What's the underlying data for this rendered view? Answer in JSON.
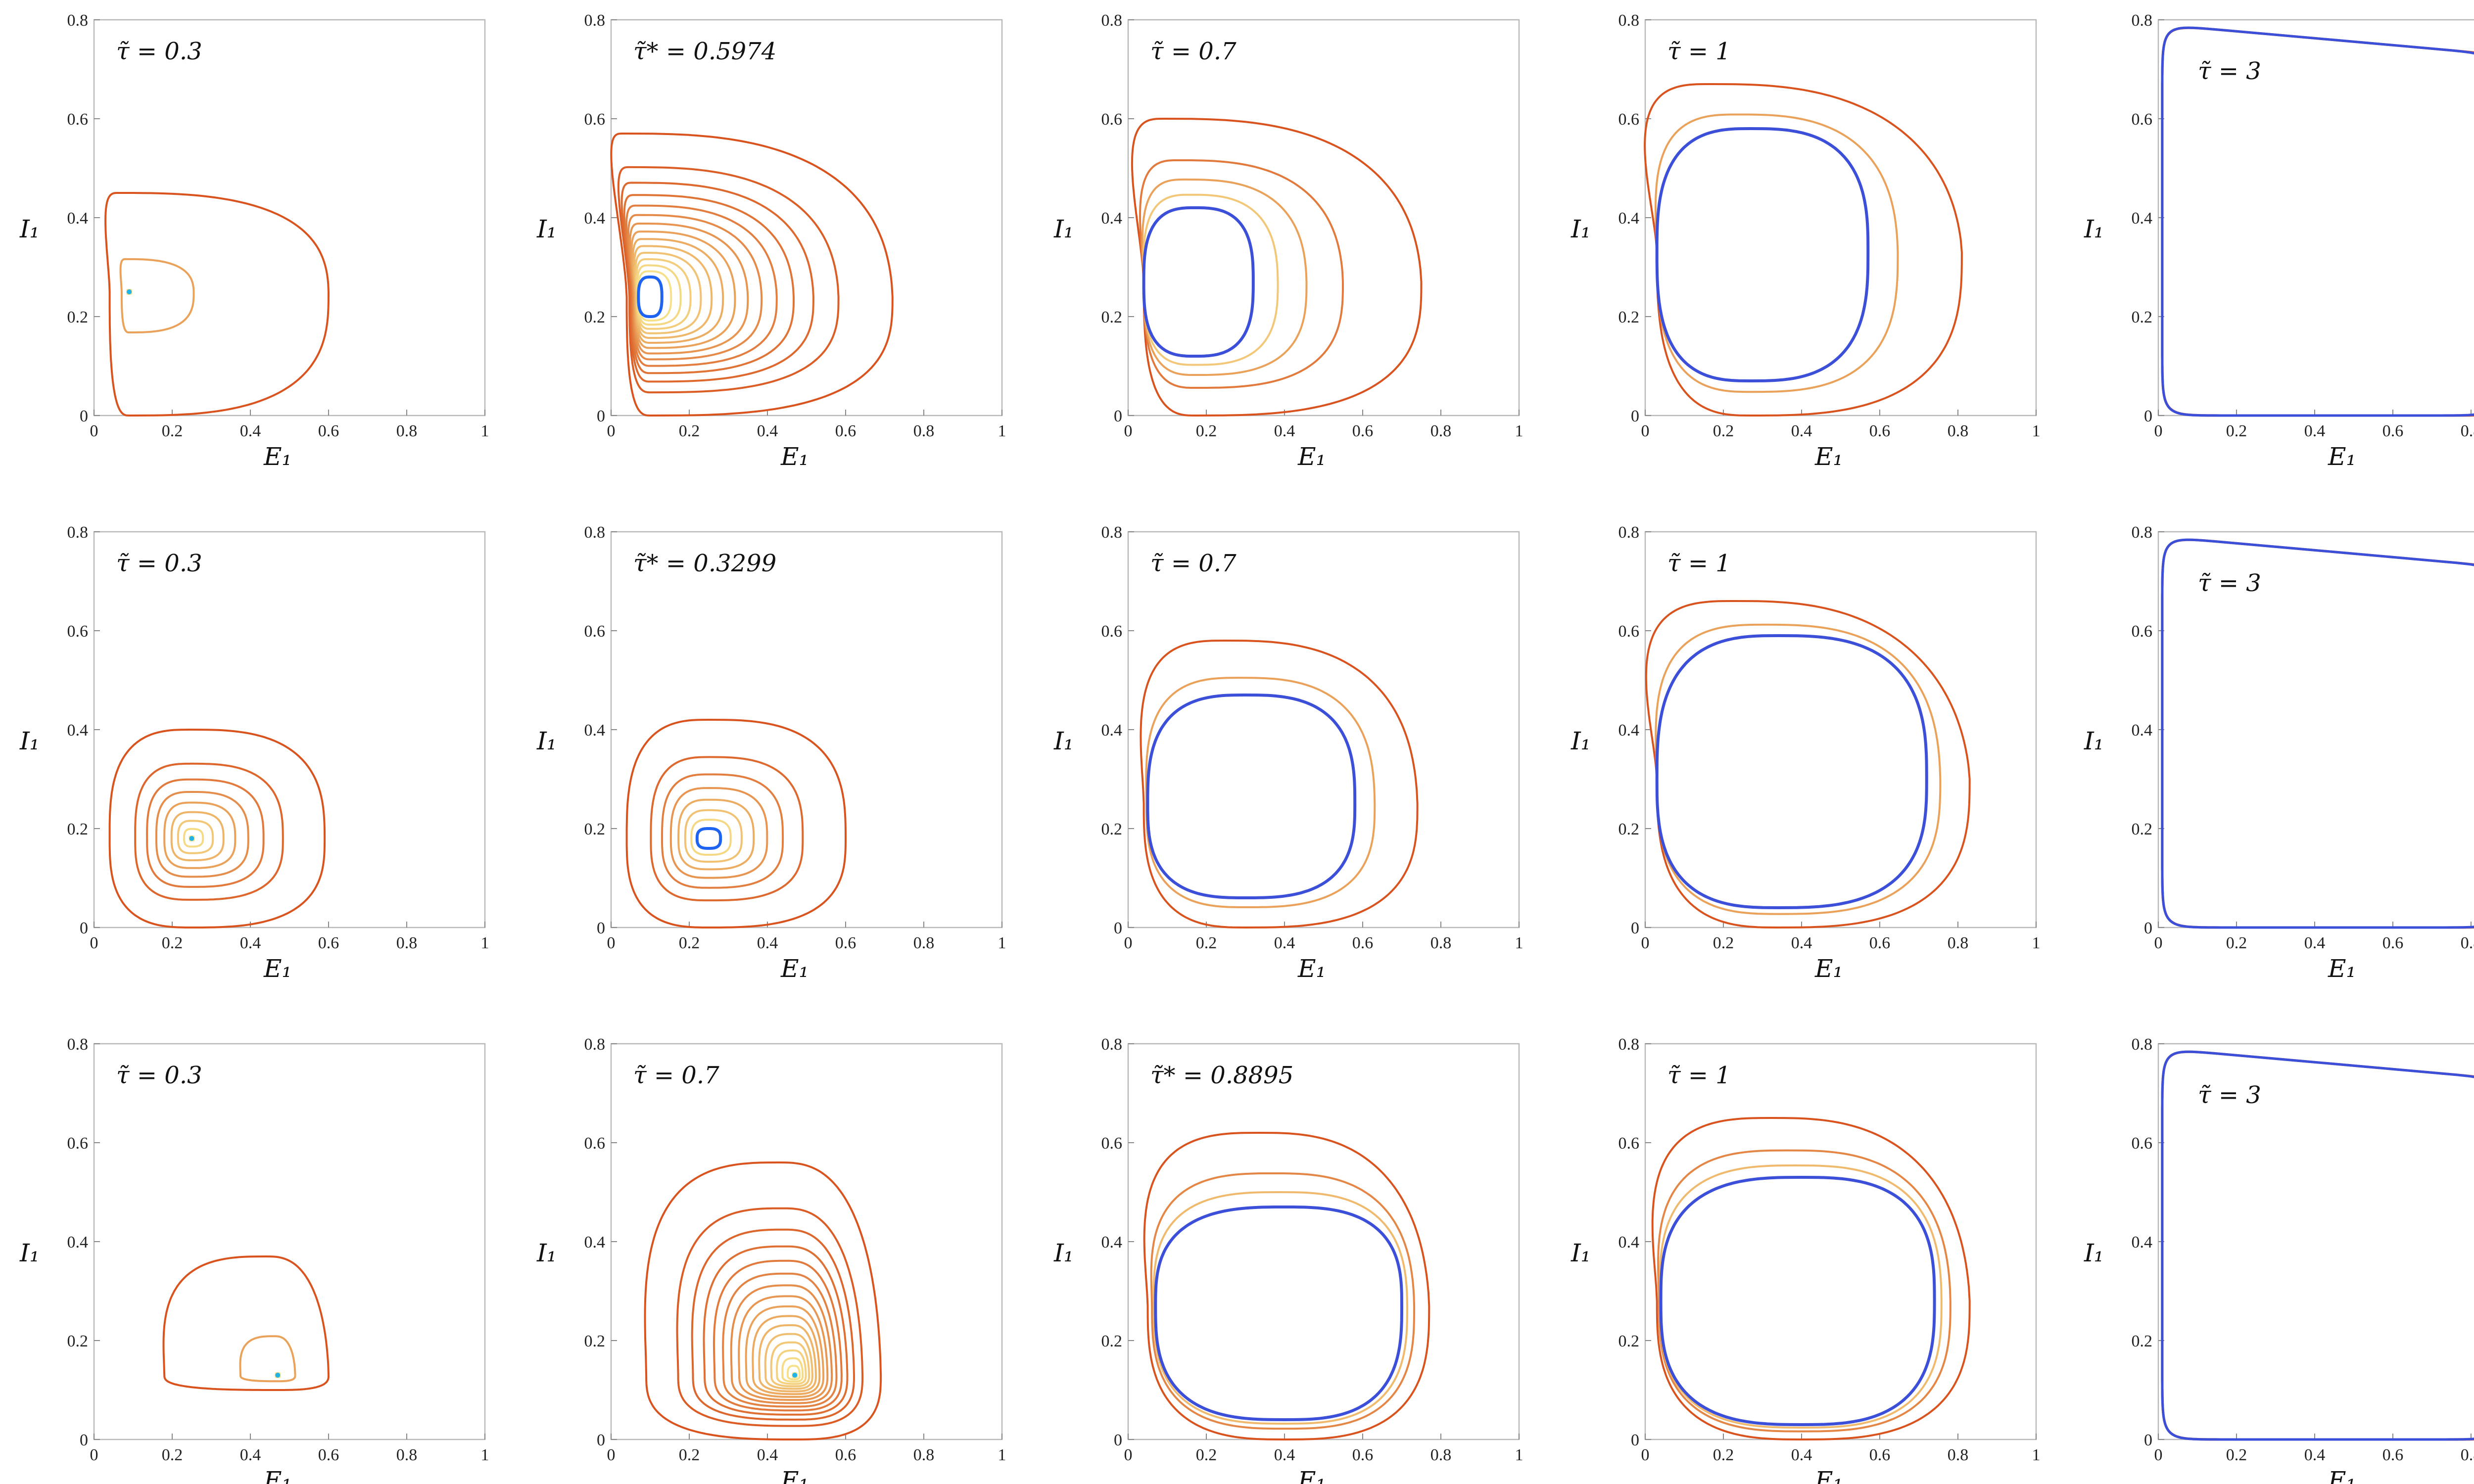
{
  "chart_data": {
    "type": "line",
    "layout": "3 rows x 5 columns of phase portraits",
    "xlabel": "E₁",
    "ylabel": "I₁",
    "xlim": [
      0,
      1
    ],
    "ylim": [
      0,
      0.8
    ],
    "x_ticks": [
      "0",
      "0.2",
      "0.4",
      "0.6",
      "0.8",
      "1"
    ],
    "y_ticks": [
      "0",
      "0.2",
      "0.4",
      "0.6",
      "0.8"
    ],
    "colors": {
      "initial_transient": "#d9531e",
      "transient_light": "#f7e08a",
      "limit_cycle": "#3b4fd8",
      "limit_cycle_bright": "#1e64f0",
      "fixed_point": "#1fb3e8"
    },
    "panels": [
      {
        "row": 0,
        "col": 0,
        "label": "τ̃ = 0.3",
        "kind": "spiral_in",
        "cx": 0.09,
        "cy": 0.25,
        "outer": {
          "left": 0.04,
          "right": 0.6,
          "top": 0.45,
          "bottom": 0.0,
          "peak_x": 0.27
        },
        "cycle": null,
        "turns": 2
      },
      {
        "row": 0,
        "col": 1,
        "label": "τ̃* = 0.5974",
        "kind": "spiral_to_cycle",
        "cx": 0.1,
        "cy": 0.24,
        "outer": {
          "left": 0.04,
          "right": 0.72,
          "top": 0.57,
          "bottom": 0.0,
          "peak_x": 0.26
        },
        "cycle": {
          "left": 0.07,
          "right": 0.13,
          "top": 0.28,
          "bottom": 0.2
        },
        "turns": 14
      },
      {
        "row": 0,
        "col": 2,
        "label": "τ̃ = 0.7",
        "kind": "spiral_to_cycle",
        "cx": 0.17,
        "cy": 0.27,
        "outer": {
          "left": 0.04,
          "right": 0.75,
          "top": 0.6,
          "bottom": 0.0,
          "peak_x": 0.26
        },
        "cycle": {
          "left": 0.04,
          "right": 0.32,
          "top": 0.42,
          "bottom": 0.12
        },
        "turns": 4
      },
      {
        "row": 0,
        "col": 3,
        "label": "τ̃ = 1",
        "kind": "spiral_to_cycle",
        "cx": 0.27,
        "cy": 0.33,
        "outer": {
          "left": 0.03,
          "right": 0.81,
          "top": 0.67,
          "bottom": 0.0,
          "peak_x": 0.24
        },
        "cycle": {
          "left": 0.03,
          "right": 0.57,
          "top": 0.58,
          "bottom": 0.07
        },
        "turns": 2
      },
      {
        "row": 0,
        "col": 4,
        "label": "τ̃ = 3",
        "kind": "square_cycle",
        "cx": 0.45,
        "cy": 0.4,
        "outer": {
          "left": 0.01,
          "right": 0.9,
          "top": 0.79,
          "bottom": 0.0
        },
        "cycle": {
          "left": 0.01,
          "right": 0.87,
          "top": 0.79,
          "bottom": 0.0
        },
        "turns": 1
      },
      {
        "row": 1,
        "col": 0,
        "label": "τ̃ = 0.3",
        "kind": "spiral_in",
        "cx": 0.25,
        "cy": 0.18,
        "outer": {
          "left": 0.04,
          "right": 0.59,
          "top": 0.4,
          "bottom": 0.0,
          "peak_x": 0.31
        },
        "cycle": null,
        "turns": 8
      },
      {
        "row": 1,
        "col": 1,
        "label": "τ̃* = 0.3299",
        "kind": "spiral_to_cycle",
        "cx": 0.25,
        "cy": 0.18,
        "outer": {
          "left": 0.04,
          "right": 0.6,
          "top": 0.42,
          "bottom": 0.0,
          "peak_x": 0.32
        },
        "cycle": {
          "left": 0.22,
          "right": 0.28,
          "top": 0.2,
          "bottom": 0.16
        },
        "turns": 7
      },
      {
        "row": 1,
        "col": 2,
        "label": "τ̃ = 0.7",
        "kind": "spiral_to_cycle",
        "cx": 0.3,
        "cy": 0.25,
        "outer": {
          "left": 0.04,
          "right": 0.74,
          "top": 0.58,
          "bottom": 0.0,
          "peak_x": 0.3
        },
        "cycle": {
          "left": 0.05,
          "right": 0.58,
          "top": 0.47,
          "bottom": 0.06
        },
        "turns": 2
      },
      {
        "row": 1,
        "col": 3,
        "label": "τ̃ = 1",
        "kind": "spiral_to_cycle",
        "cx": 0.34,
        "cy": 0.3,
        "outer": {
          "left": 0.03,
          "right": 0.83,
          "top": 0.66,
          "bottom": 0.0,
          "peak_x": 0.24
        },
        "cycle": {
          "left": 0.03,
          "right": 0.72,
          "top": 0.59,
          "bottom": 0.04
        },
        "turns": 2
      },
      {
        "row": 1,
        "col": 4,
        "label": "τ̃ = 3",
        "kind": "square_cycle",
        "cx": 0.45,
        "cy": 0.4,
        "outer": {
          "left": 0.01,
          "right": 0.9,
          "top": 0.79,
          "bottom": 0.0
        },
        "cycle": {
          "left": 0.01,
          "right": 0.88,
          "top": 0.79,
          "bottom": 0.0
        },
        "turns": 1
      },
      {
        "row": 2,
        "col": 0,
        "label": "τ̃ = 0.3",
        "kind": "spiral_in",
        "cx": 0.47,
        "cy": 0.13,
        "outer": {
          "left": 0.18,
          "right": 0.6,
          "top": 0.37,
          "bottom": 0.1,
          "peak_x": 0.34
        },
        "cycle": null,
        "turns": 2
      },
      {
        "row": 2,
        "col": 1,
        "label": "τ̃ = 0.7",
        "kind": "spiral_in",
        "cx": 0.47,
        "cy": 0.13,
        "outer": {
          "left": 0.09,
          "right": 0.69,
          "top": 0.56,
          "bottom": 0.0,
          "peak_x": 0.32
        },
        "cycle": null,
        "turns": 16
      },
      {
        "row": 2,
        "col": 2,
        "label": "τ̃* = 0.8895",
        "kind": "spiral_to_cycle",
        "cx": 0.4,
        "cy": 0.27,
        "outer": {
          "left": 0.05,
          "right": 0.77,
          "top": 0.62,
          "bottom": 0.0,
          "peak_x": 0.3
        },
        "cycle": {
          "left": 0.07,
          "right": 0.7,
          "top": 0.47,
          "bottom": 0.04
        },
        "turns": 3
      },
      {
        "row": 2,
        "col": 3,
        "label": "τ̃ = 1",
        "kind": "spiral_to_cycle",
        "cx": 0.4,
        "cy": 0.28,
        "outer": {
          "left": 0.03,
          "right": 0.83,
          "top": 0.65,
          "bottom": 0.0,
          "peak_x": 0.3
        },
        "cycle": {
          "left": 0.04,
          "right": 0.74,
          "top": 0.53,
          "bottom": 0.03
        },
        "turns": 3
      },
      {
        "row": 2,
        "col": 4,
        "label": "τ̃ = 3",
        "kind": "square_cycle",
        "cx": 0.45,
        "cy": 0.4,
        "outer": {
          "left": 0.01,
          "right": 0.9,
          "top": 0.79,
          "bottom": 0.0
        },
        "cycle": {
          "left": 0.01,
          "right": 0.88,
          "top": 0.79,
          "bottom": 0.0
        },
        "turns": 1
      }
    ]
  }
}
